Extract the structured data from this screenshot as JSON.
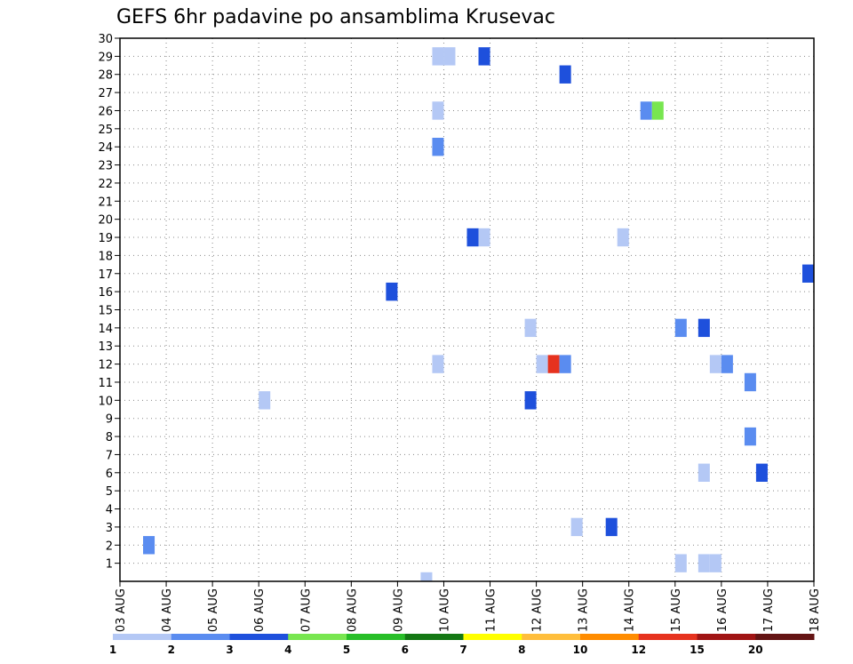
{
  "chart_data": {
    "type": "heatmap",
    "title": "GEFS 6hr padavine po ansamblima Krusevac",
    "x_tick_labels": [
      "03 AUG",
      "04 AUG",
      "05 AUG",
      "06 AUG",
      "07 AUG",
      "08 AUG",
      "09 AUG",
      "10 AUG",
      "11 AUG",
      "12 AUG",
      "13 AUG",
      "14 AUG",
      "15 AUG",
      "16 AUG",
      "17 AUG",
      "18 AUG"
    ],
    "x_range_days": [
      0,
      15
    ],
    "y_tick_labels": [
      "1",
      "2",
      "3",
      "4",
      "5",
      "6",
      "7",
      "8",
      "9",
      "10",
      "11",
      "12",
      "13",
      "14",
      "15",
      "16",
      "17",
      "18",
      "19",
      "20",
      "21",
      "22",
      "23",
      "24",
      "25",
      "26",
      "27",
      "28",
      "29",
      "30"
    ],
    "y_range": [
      0,
      30
    ],
    "grid": true,
    "colorbar": {
      "placement": "bottom",
      "labels": [
        "1",
        "2",
        "3",
        "4",
        "5",
        "6",
        "7",
        "8",
        "10",
        "12",
        "15",
        "20"
      ],
      "colors": [
        "#b4c8f5",
        "#5a8cf0",
        "#1e50dc",
        "#78e650",
        "#28be28",
        "#147814",
        "#ffff00",
        "#ffbe3c",
        "#ff8c00",
        "#e6321e",
        "#a01414",
        "#641414"
      ]
    },
    "cells": [
      {
        "t": "2023-08-03T12:00",
        "member": 2,
        "class": 1
      },
      {
        "t": "2023-08-06T00:00",
        "member": 10,
        "class": 0
      },
      {
        "t": "2023-08-08T18:00",
        "member": 16,
        "class": 2
      },
      {
        "t": "2023-08-09T12:00",
        "member": 0,
        "class": 0
      },
      {
        "t": "2023-08-09T18:00",
        "member": 12,
        "class": 0
      },
      {
        "t": "2023-08-09T18:00",
        "member": 24,
        "class": 1
      },
      {
        "t": "2023-08-09T18:00",
        "member": 26,
        "class": 0
      },
      {
        "t": "2023-08-09T18:00",
        "member": 29,
        "class": 0
      },
      {
        "t": "2023-08-10T00:00",
        "member": 29,
        "class": 0
      },
      {
        "t": "2023-08-10T12:00",
        "member": 19,
        "class": 2
      },
      {
        "t": "2023-08-10T18:00",
        "member": 19,
        "class": 0
      },
      {
        "t": "2023-08-10T18:00",
        "member": 29,
        "class": 2
      },
      {
        "t": "2023-08-11T18:00",
        "member": 10,
        "class": 2
      },
      {
        "t": "2023-08-11T18:00",
        "member": 14,
        "class": 0
      },
      {
        "t": "2023-08-12T00:00",
        "member": 12,
        "class": 0
      },
      {
        "t": "2023-08-12T06:00",
        "member": 12,
        "class": 9
      },
      {
        "t": "2023-08-12T12:00",
        "member": 12,
        "class": 1
      },
      {
        "t": "2023-08-12T12:00",
        "member": 28,
        "class": 2
      },
      {
        "t": "2023-08-12T18:00",
        "member": 3,
        "class": 0
      },
      {
        "t": "2023-08-13T12:00",
        "member": 3,
        "class": 2
      },
      {
        "t": "2023-08-13T18:00",
        "member": 19,
        "class": 0
      },
      {
        "t": "2023-08-14T06:00",
        "member": 26,
        "class": 1
      },
      {
        "t": "2023-08-14T12:00",
        "member": 26,
        "class": 3
      },
      {
        "t": "2023-08-15T00:00",
        "member": 1,
        "class": 0
      },
      {
        "t": "2023-08-15T00:00",
        "member": 14,
        "class": 1
      },
      {
        "t": "2023-08-15T12:00",
        "member": 1,
        "class": 0
      },
      {
        "t": "2023-08-15T12:00",
        "member": 6,
        "class": 0
      },
      {
        "t": "2023-08-15T12:00",
        "member": 14,
        "class": 2
      },
      {
        "t": "2023-08-15T18:00",
        "member": 1,
        "class": 0
      },
      {
        "t": "2023-08-15T18:00",
        "member": 12,
        "class": 0
      },
      {
        "t": "2023-08-16T00:00",
        "member": 12,
        "class": 1
      },
      {
        "t": "2023-08-16T12:00",
        "member": 8,
        "class": 1
      },
      {
        "t": "2023-08-16T12:00",
        "member": 11,
        "class": 1
      },
      {
        "t": "2023-08-16T18:00",
        "member": 6,
        "class": 2
      },
      {
        "t": "2023-08-17T18:00",
        "member": 17,
        "class": 2
      }
    ]
  }
}
